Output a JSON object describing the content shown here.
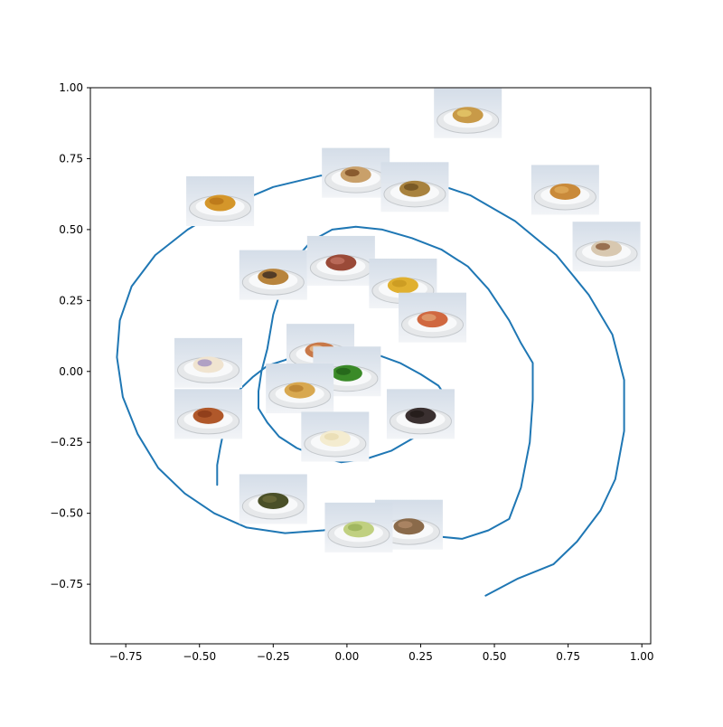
{
  "chart_data": {
    "type": "line",
    "title": "",
    "xlabel": "",
    "ylabel": "",
    "xlim": [
      -0.87,
      1.03
    ],
    "ylim": [
      -0.96,
      1.0
    ],
    "xticks": [
      -0.75,
      -0.5,
      -0.25,
      0.0,
      0.25,
      0.5,
      0.75,
      1.0
    ],
    "xtick_labels": [
      "−0.75",
      "−0.50",
      "−0.25",
      "0.00",
      "0.25",
      "0.50",
      "0.75",
      "1.00"
    ],
    "yticks": [
      -0.75,
      -0.5,
      -0.25,
      0.0,
      0.25,
      0.5,
      0.75,
      1.0
    ],
    "ytick_labels": [
      "−0.75",
      "−0.50",
      "−0.25",
      "0.00",
      "0.25",
      "0.50",
      "0.75",
      "1.00"
    ],
    "grid": false,
    "line_color": "#1f77b4",
    "series": [
      {
        "name": "spiral",
        "x": [
          -0.44,
          -0.44,
          -0.43,
          -0.42,
          -0.41,
          -0.39,
          -0.36,
          -0.32,
          -0.27,
          -0.21,
          -0.14,
          -0.06,
          0.02,
          0.1,
          0.18,
          0.25,
          0.31,
          0.33,
          0.32,
          0.31,
          0.25,
          0.15,
          0.06,
          -0.02,
          -0.1,
          -0.17,
          -0.23,
          -0.27,
          -0.3,
          -0.3,
          -0.29,
          -0.27,
          -0.25,
          -0.22,
          -0.18,
          -0.12,
          -0.05,
          0.03,
          0.12,
          0.22,
          0.32,
          0.41,
          0.48,
          0.55,
          0.59,
          0.63,
          0.63,
          0.62,
          0.59,
          0.55,
          0.48,
          0.39,
          0.29,
          0.17,
          0.05,
          -0.08,
          -0.21,
          -0.34,
          -0.45,
          -0.55,
          -0.64,
          -0.71,
          -0.76,
          -0.78,
          -0.77,
          -0.73,
          -0.65,
          -0.54,
          -0.41,
          -0.25,
          -0.09,
          0.08,
          0.25,
          0.42,
          0.57,
          0.71,
          0.82,
          0.9,
          0.94,
          0.94,
          0.91,
          0.86,
          0.78,
          0.7,
          0.58,
          0.47
        ],
        "y": [
          -0.4,
          -0.33,
          -0.27,
          -0.22,
          -0.17,
          -0.11,
          -0.06,
          -0.02,
          0.02,
          0.04,
          0.07,
          0.08,
          0.08,
          0.06,
          0.03,
          -0.01,
          -0.05,
          -0.08,
          -0.12,
          -0.15,
          -0.22,
          -0.28,
          -0.31,
          -0.32,
          -0.3,
          -0.27,
          -0.23,
          -0.18,
          -0.13,
          -0.07,
          0.0,
          0.08,
          0.2,
          0.3,
          0.39,
          0.46,
          0.5,
          0.51,
          0.5,
          0.47,
          0.43,
          0.37,
          0.29,
          0.18,
          0.1,
          0.03,
          -0.1,
          -0.25,
          -0.41,
          -0.52,
          -0.56,
          -0.59,
          -0.58,
          -0.56,
          -0.54,
          -0.56,
          -0.57,
          -0.55,
          -0.5,
          -0.43,
          -0.34,
          -0.22,
          -0.09,
          0.05,
          0.18,
          0.3,
          0.41,
          0.5,
          0.58,
          0.65,
          0.69,
          0.7,
          0.68,
          0.62,
          0.53,
          0.41,
          0.27,
          0.13,
          -0.03,
          -0.21,
          -0.38,
          -0.49,
          -0.6,
          -0.68,
          -0.73,
          -0.79
        ]
      }
    ],
    "image_annotations": [
      {
        "name": "baked-pastry-plate",
        "x": 0.41,
        "y": 0.91
      },
      {
        "name": "bread-slice-plate",
        "x": 0.03,
        "y": 0.7
      },
      {
        "name": "chopped-nuts-plate",
        "x": 0.23,
        "y": 0.65
      },
      {
        "name": "roll-plate",
        "x": 0.74,
        "y": 0.64
      },
      {
        "name": "fried-rolls-plate",
        "x": -0.43,
        "y": 0.6
      },
      {
        "name": "cinnamon-bun-plate",
        "x": 0.88,
        "y": 0.44
      },
      {
        "name": "bacon-plate",
        "x": -0.02,
        "y": 0.39
      },
      {
        "name": "hamburger-plate",
        "x": -0.25,
        "y": 0.34
      },
      {
        "name": "soup-plate",
        "x": 0.19,
        "y": 0.31
      },
      {
        "name": "pasta-plate",
        "x": 0.29,
        "y": 0.19
      },
      {
        "name": "pizza-plate",
        "x": -0.09,
        "y": 0.08
      },
      {
        "name": "toaster-pastry-plate",
        "x": -0.47,
        "y": 0.03
      },
      {
        "name": "green-pepper-plate",
        "x": 0.0,
        "y": 0.0
      },
      {
        "name": "french-fries-plate",
        "x": -0.16,
        "y": -0.06
      },
      {
        "name": "baked-beans-plate",
        "x": -0.47,
        "y": -0.15
      },
      {
        "name": "brownie-plate",
        "x": 0.25,
        "y": -0.15
      },
      {
        "name": "layer-cake-plate",
        "x": -0.04,
        "y": -0.23
      },
      {
        "name": "stuffed-grape-leaves-plate",
        "x": -0.25,
        "y": -0.45
      },
      {
        "name": "cookies-plate",
        "x": 0.21,
        "y": -0.54
      },
      {
        "name": "pear-plate",
        "x": 0.04,
        "y": -0.55
      }
    ]
  }
}
